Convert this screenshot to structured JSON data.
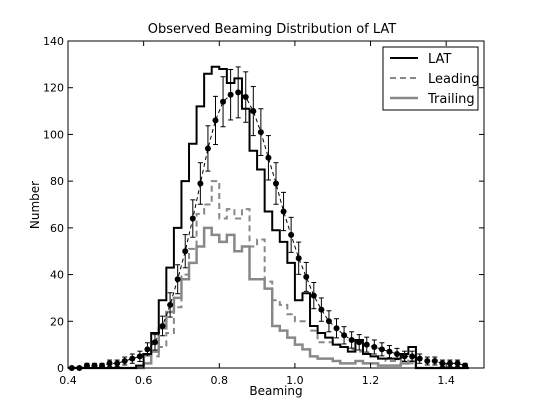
{
  "chart_data": {
    "type": "line",
    "title": "Observed Beaming Distribution of LAT",
    "xlabel": "Beaming",
    "ylabel": "Number",
    "xlim": [
      0.4,
      1.5
    ],
    "ylim": [
      0,
      140
    ],
    "x_ticks": [
      "0.4",
      "0.6",
      "0.8",
      "1.0",
      "1.2",
      "1.4"
    ],
    "y_ticks": [
      "0",
      "20",
      "40",
      "60",
      "80",
      "100",
      "120",
      "140"
    ],
    "grid": false,
    "legend_position": "top-right",
    "bin_edges": [
      0.4,
      0.42,
      0.44,
      0.46,
      0.48,
      0.5,
      0.52,
      0.54,
      0.56,
      0.58,
      0.6,
      0.62,
      0.64,
      0.66,
      0.68,
      0.7,
      0.72,
      0.74,
      0.76,
      0.78,
      0.8,
      0.82,
      0.84,
      0.86,
      0.88,
      0.9,
      0.92,
      0.94,
      0.96,
      0.98,
      1.0,
      1.02,
      1.04,
      1.06,
      1.08,
      1.1,
      1.12,
      1.14,
      1.16,
      1.18,
      1.2,
      1.22,
      1.24,
      1.26,
      1.28,
      1.3,
      1.32,
      1.34,
      1.36,
      1.38,
      1.4,
      1.42,
      1.44,
      1.46
    ],
    "series": [
      {
        "name": "LAT",
        "style": "solid",
        "color": "#000000",
        "values": [
          0,
          0,
          0,
          0,
          0,
          0,
          0,
          0,
          0,
          1,
          6,
          15,
          29,
          43,
          60,
          80,
          96,
          112,
          126,
          129,
          128,
          122,
          124,
          111,
          93,
          85,
          67,
          59,
          54,
          45,
          29,
          32,
          18,
          15,
          13,
          10,
          9,
          7,
          12,
          6,
          5,
          4,
          4,
          4,
          6,
          9,
          0,
          0,
          0,
          0,
          0,
          0,
          0
        ]
      },
      {
        "name": "Leading",
        "style": "dashed",
        "color": "#888888",
        "values": [
          0,
          0,
          0,
          0,
          0,
          0,
          0,
          0,
          0,
          0,
          2,
          5,
          9,
          15,
          26,
          40,
          51,
          66,
          70,
          80,
          64,
          68,
          64,
          68,
          52,
          55,
          37,
          29,
          27,
          23,
          20,
          20,
          16,
          11,
          11,
          10,
          9,
          8,
          7,
          6,
          5,
          4,
          3,
          3,
          3,
          2,
          0,
          0,
          0,
          0,
          0,
          0,
          0
        ]
      },
      {
        "name": "Trailing",
        "style": "solid",
        "color": "#888888",
        "values": [
          0,
          0,
          0,
          0,
          0,
          0,
          0,
          0,
          0,
          0,
          2,
          7,
          17,
          24,
          30,
          38,
          45,
          52,
          60,
          57,
          54,
          57,
          50,
          52,
          38,
          38,
          34,
          18,
          16,
          13,
          10,
          8,
          5,
          4,
          4,
          3,
          2,
          2,
          3,
          2,
          2,
          1,
          1,
          1,
          2,
          3,
          0,
          0,
          0,
          0,
          0,
          0,
          0
        ]
      },
      {
        "name": "",
        "style": "points-with-error",
        "color": "#000000",
        "x": [
          0.41,
          0.43,
          0.45,
          0.47,
          0.49,
          0.51,
          0.53,
          0.55,
          0.57,
          0.59,
          0.61,
          0.63,
          0.65,
          0.67,
          0.69,
          0.71,
          0.73,
          0.75,
          0.77,
          0.79,
          0.81,
          0.83,
          0.85,
          0.87,
          0.89,
          0.91,
          0.93,
          0.95,
          0.97,
          0.99,
          1.01,
          1.03,
          1.05,
          1.07,
          1.09,
          1.11,
          1.13,
          1.15,
          1.17,
          1.19,
          1.21,
          1.23,
          1.25,
          1.27,
          1.29,
          1.31,
          1.33,
          1.35,
          1.37,
          1.39,
          1.41,
          1.43,
          1.45
        ],
        "y": [
          0,
          0,
          1,
          1,
          1,
          2,
          2,
          3,
          4,
          5,
          8,
          11,
          18,
          27,
          38,
          50,
          64,
          79,
          94,
          106,
          114,
          117,
          118,
          116,
          110,
          101,
          90,
          79,
          67,
          57,
          47,
          39,
          31,
          25,
          20,
          17,
          14,
          12,
          11,
          10,
          9,
          8,
          7,
          6,
          5,
          5,
          4,
          3,
          3,
          2,
          2,
          2,
          1
        ],
        "err": [
          0.5,
          0.5,
          1,
          1,
          1,
          1.4,
          1.4,
          1.7,
          2,
          2.2,
          2.8,
          3.3,
          4.2,
          5.2,
          6.2,
          7.1,
          8,
          8.9,
          9.7,
          10.3,
          10.7,
          10.8,
          10.9,
          10.8,
          10.5,
          10,
          9.5,
          8.9,
          8.2,
          7.5,
          6.9,
          6.2,
          5.6,
          5,
          4.5,
          4.1,
          3.7,
          3.5,
          3.3,
          3.2,
          3,
          2.8,
          2.6,
          2.4,
          2.2,
          2.2,
          2,
          1.7,
          1.7,
          1.4,
          1.4,
          1.4,
          1
        ]
      }
    ]
  }
}
